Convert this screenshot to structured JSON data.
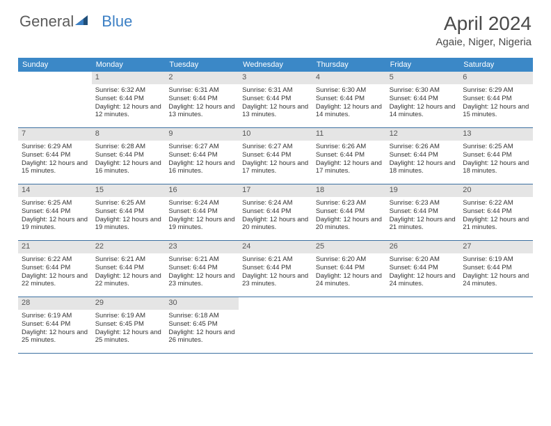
{
  "brand": {
    "part1": "General",
    "part2": "Blue"
  },
  "title": "April 2024",
  "location": "Agaie, Niger, Nigeria",
  "colors": {
    "header_bg": "#3b88c7",
    "header_text": "#ffffff",
    "daynum_bg": "#e5e5e5",
    "daynum_text": "#555555",
    "text": "#333333",
    "week_border": "#3b6fa0",
    "brand_gray": "#5b5b5b",
    "brand_blue": "#3b7fc4",
    "logo_dark": "#1f4e79",
    "logo_mid": "#3b7fc4"
  },
  "day_labels": [
    "Sunday",
    "Monday",
    "Tuesday",
    "Wednesday",
    "Thursday",
    "Friday",
    "Saturday"
  ],
  "weeks": [
    [
      null,
      {
        "n": "1",
        "sunrise": "6:32 AM",
        "sunset": "6:44 PM",
        "daylight": "12 hours and 12 minutes."
      },
      {
        "n": "2",
        "sunrise": "6:31 AM",
        "sunset": "6:44 PM",
        "daylight": "12 hours and 13 minutes."
      },
      {
        "n": "3",
        "sunrise": "6:31 AM",
        "sunset": "6:44 PM",
        "daylight": "12 hours and 13 minutes."
      },
      {
        "n": "4",
        "sunrise": "6:30 AM",
        "sunset": "6:44 PM",
        "daylight": "12 hours and 14 minutes."
      },
      {
        "n": "5",
        "sunrise": "6:30 AM",
        "sunset": "6:44 PM",
        "daylight": "12 hours and 14 minutes."
      },
      {
        "n": "6",
        "sunrise": "6:29 AM",
        "sunset": "6:44 PM",
        "daylight": "12 hours and 15 minutes."
      }
    ],
    [
      {
        "n": "7",
        "sunrise": "6:29 AM",
        "sunset": "6:44 PM",
        "daylight": "12 hours and 15 minutes."
      },
      {
        "n": "8",
        "sunrise": "6:28 AM",
        "sunset": "6:44 PM",
        "daylight": "12 hours and 16 minutes."
      },
      {
        "n": "9",
        "sunrise": "6:27 AM",
        "sunset": "6:44 PM",
        "daylight": "12 hours and 16 minutes."
      },
      {
        "n": "10",
        "sunrise": "6:27 AM",
        "sunset": "6:44 PM",
        "daylight": "12 hours and 17 minutes."
      },
      {
        "n": "11",
        "sunrise": "6:26 AM",
        "sunset": "6:44 PM",
        "daylight": "12 hours and 17 minutes."
      },
      {
        "n": "12",
        "sunrise": "6:26 AM",
        "sunset": "6:44 PM",
        "daylight": "12 hours and 18 minutes."
      },
      {
        "n": "13",
        "sunrise": "6:25 AM",
        "sunset": "6:44 PM",
        "daylight": "12 hours and 18 minutes."
      }
    ],
    [
      {
        "n": "14",
        "sunrise": "6:25 AM",
        "sunset": "6:44 PM",
        "daylight": "12 hours and 19 minutes."
      },
      {
        "n": "15",
        "sunrise": "6:25 AM",
        "sunset": "6:44 PM",
        "daylight": "12 hours and 19 minutes."
      },
      {
        "n": "16",
        "sunrise": "6:24 AM",
        "sunset": "6:44 PM",
        "daylight": "12 hours and 19 minutes."
      },
      {
        "n": "17",
        "sunrise": "6:24 AM",
        "sunset": "6:44 PM",
        "daylight": "12 hours and 20 minutes."
      },
      {
        "n": "18",
        "sunrise": "6:23 AM",
        "sunset": "6:44 PM",
        "daylight": "12 hours and 20 minutes."
      },
      {
        "n": "19",
        "sunrise": "6:23 AM",
        "sunset": "6:44 PM",
        "daylight": "12 hours and 21 minutes."
      },
      {
        "n": "20",
        "sunrise": "6:22 AM",
        "sunset": "6:44 PM",
        "daylight": "12 hours and 21 minutes."
      }
    ],
    [
      {
        "n": "21",
        "sunrise": "6:22 AM",
        "sunset": "6:44 PM",
        "daylight": "12 hours and 22 minutes."
      },
      {
        "n": "22",
        "sunrise": "6:21 AM",
        "sunset": "6:44 PM",
        "daylight": "12 hours and 22 minutes."
      },
      {
        "n": "23",
        "sunrise": "6:21 AM",
        "sunset": "6:44 PM",
        "daylight": "12 hours and 23 minutes."
      },
      {
        "n": "24",
        "sunrise": "6:21 AM",
        "sunset": "6:44 PM",
        "daylight": "12 hours and 23 minutes."
      },
      {
        "n": "25",
        "sunrise": "6:20 AM",
        "sunset": "6:44 PM",
        "daylight": "12 hours and 24 minutes."
      },
      {
        "n": "26",
        "sunrise": "6:20 AM",
        "sunset": "6:44 PM",
        "daylight": "12 hours and 24 minutes."
      },
      {
        "n": "27",
        "sunrise": "6:19 AM",
        "sunset": "6:44 PM",
        "daylight": "12 hours and 24 minutes."
      }
    ],
    [
      {
        "n": "28",
        "sunrise": "6:19 AM",
        "sunset": "6:44 PM",
        "daylight": "12 hours and 25 minutes."
      },
      {
        "n": "29",
        "sunrise": "6:19 AM",
        "sunset": "6:45 PM",
        "daylight": "12 hours and 25 minutes."
      },
      {
        "n": "30",
        "sunrise": "6:18 AM",
        "sunset": "6:45 PM",
        "daylight": "12 hours and 26 minutes."
      },
      null,
      null,
      null,
      null
    ]
  ],
  "labels": {
    "sunrise_prefix": "Sunrise: ",
    "sunset_prefix": "Sunset: ",
    "daylight_prefix": "Daylight: "
  }
}
